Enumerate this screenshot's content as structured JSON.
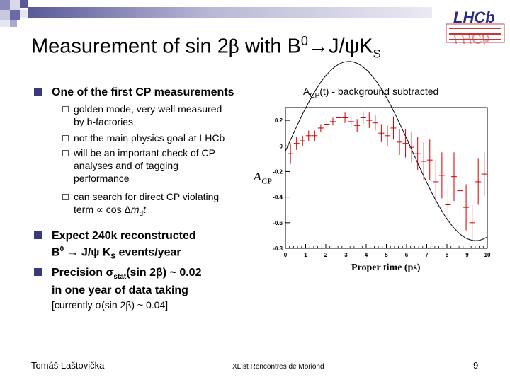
{
  "title": {
    "pre": "Measurement of sin 2",
    "beta": "β",
    "mid": " with B",
    "sup": "0",
    "arrow": "→",
    "jpsi": "J/ψK",
    "sub": "S"
  },
  "bullets": {
    "b1": "One of the first CP measurements",
    "sub1_l1": "golden mode, very well measured",
    "sub1_l2": "by b-factories",
    "sub2": "not the main physics goal at LHCb",
    "sub3_l1": "will be an important check of CP",
    "sub3_l2": "analyses and of tagging",
    "sub3_l3": "performance",
    "sub4_l1": "can search for direct CP violating",
    "sub4_l2_pre": "term ∝ cos Δ",
    "sub4_l2_m": "m",
    "sub4_l2_d": "d",
    "sub4_l2_t": "t",
    "b2_l1": "Expect 240k reconstructed",
    "b2_l2_pre": "B",
    "b2_l2_sup": "0",
    "b2_l2_mid": " → J/ψ K",
    "b2_l2_sub": "S",
    "b2_l2_post": " events/year",
    "b3_l1_pre": "Precision σ",
    "b3_l1_sub": "stat",
    "b3_l1_post": "(sin 2β) ~ 0.02",
    "b3_l2": "in one year of data taking",
    "b3_l3": "[currently σ(sin 2β) ~ 0.04]"
  },
  "footer": {
    "author": "Tomáš Laštovička",
    "conference": "XLIst Rencontres de Moriond",
    "page": "9"
  },
  "logo": {
    "text": "LHCb"
  },
  "colors": {
    "accent": "#3a3a7a",
    "points": "#cc0000",
    "curve": "#000000"
  },
  "chart_data": {
    "type": "scatter",
    "title_pre": "A",
    "title_sub": "CP",
    "title_post": "(t) - background subtracted",
    "ylabel_main": "A",
    "ylabel_sub": "CP",
    "xlabel": "Proper time  (ps)",
    "xlim": [
      0,
      10
    ],
    "ylim": [
      -0.8,
      0.3
    ],
    "xticks": [
      "0",
      "1",
      "2",
      "3",
      "4",
      "5",
      "6",
      "7",
      "8",
      "9",
      "10"
    ],
    "yticks": [
      {
        "v": 0.2,
        "label": "0.2"
      },
      {
        "v": 0,
        "label": "0"
      },
      {
        "v": -0.2,
        "label": "-0.2"
      },
      {
        "v": -0.4,
        "label": "-0.4"
      },
      {
        "v": -0.6,
        "label": "-0.6"
      },
      {
        "v": -0.8,
        "label": "-0.8"
      }
    ],
    "points": [
      {
        "x": 0.25,
        "y": -0.06,
        "err": 0.08
      },
      {
        "x": 0.55,
        "y": 0.02,
        "err": 0.05
      },
      {
        "x": 0.85,
        "y": 0.04,
        "err": 0.04
      },
      {
        "x": 1.15,
        "y": 0.08,
        "err": 0.04
      },
      {
        "x": 1.45,
        "y": 0.08,
        "err": 0.04
      },
      {
        "x": 1.75,
        "y": 0.14,
        "err": 0.03
      },
      {
        "x": 2.05,
        "y": 0.17,
        "err": 0.03
      },
      {
        "x": 2.35,
        "y": 0.19,
        "err": 0.03
      },
      {
        "x": 2.65,
        "y": 0.22,
        "err": 0.03
      },
      {
        "x": 2.95,
        "y": 0.22,
        "err": 0.04
      },
      {
        "x": 3.25,
        "y": 0.19,
        "err": 0.04
      },
      {
        "x": 3.55,
        "y": 0.16,
        "err": 0.05
      },
      {
        "x": 3.85,
        "y": 0.22,
        "err": 0.05
      },
      {
        "x": 4.15,
        "y": 0.2,
        "err": 0.06
      },
      {
        "x": 4.45,
        "y": 0.18,
        "err": 0.06
      },
      {
        "x": 4.75,
        "y": 0.1,
        "err": 0.07
      },
      {
        "x": 5.05,
        "y": 0.08,
        "err": 0.08
      },
      {
        "x": 5.35,
        "y": 0.14,
        "err": 0.09
      },
      {
        "x": 5.65,
        "y": 0.03,
        "err": 0.1
      },
      {
        "x": 5.95,
        "y": 0.02,
        "err": 0.11
      },
      {
        "x": 6.25,
        "y": -0.01,
        "err": 0.12
      },
      {
        "x": 6.55,
        "y": -0.06,
        "err": 0.13
      },
      {
        "x": 6.85,
        "y": -0.12,
        "err": 0.15
      },
      {
        "x": 7.15,
        "y": -0.11,
        "err": 0.16
      },
      {
        "x": 7.45,
        "y": -0.28,
        "err": 0.17
      },
      {
        "x": 7.75,
        "y": -0.23,
        "err": 0.18
      },
      {
        "x": 8.05,
        "y": -0.46,
        "err": 0.15
      },
      {
        "x": 8.35,
        "y": -0.24,
        "err": 0.19
      },
      {
        "x": 8.65,
        "y": -0.35,
        "err": 0.17
      },
      {
        "x": 8.95,
        "y": -0.48,
        "err": 0.18
      },
      {
        "x": 9.25,
        "y": -0.6,
        "err": 0.14
      },
      {
        "x": 9.55,
        "y": -0.28,
        "err": 0.18
      },
      {
        "x": 9.85,
        "y": -0.22,
        "err": 0.17
      }
    ],
    "fit": {
      "amplitude": 0.7,
      "dm": 0.5,
      "offset": -0.04
    }
  }
}
